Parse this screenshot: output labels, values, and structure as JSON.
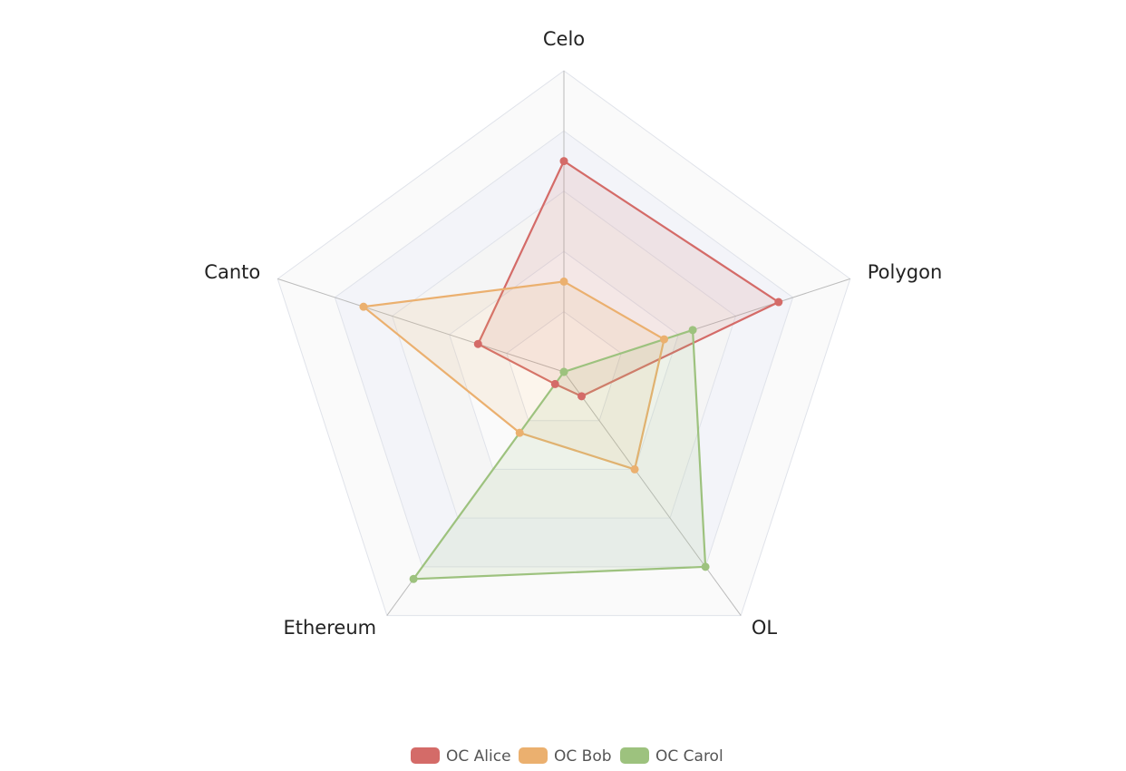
{
  "chart_data": {
    "type": "radar",
    "categories": [
      "Celo",
      "Polygon",
      "OL",
      "Ethereum",
      "Canto"
    ],
    "rlim": [
      0,
      100
    ],
    "rticks": [
      0,
      20,
      40,
      60,
      80,
      100
    ],
    "series": [
      {
        "name": "OC Alice",
        "color": "#d46b68",
        "values": [
          70,
          75,
          10,
          5,
          30
        ]
      },
      {
        "name": "OC Bob",
        "color": "#ebb06f",
        "values": [
          30,
          35,
          40,
          25,
          70
        ]
      },
      {
        "name": "OC Carol",
        "color": "#9dc27e",
        "values": [
          0,
          45,
          80,
          85,
          0
        ]
      }
    ]
  }
}
